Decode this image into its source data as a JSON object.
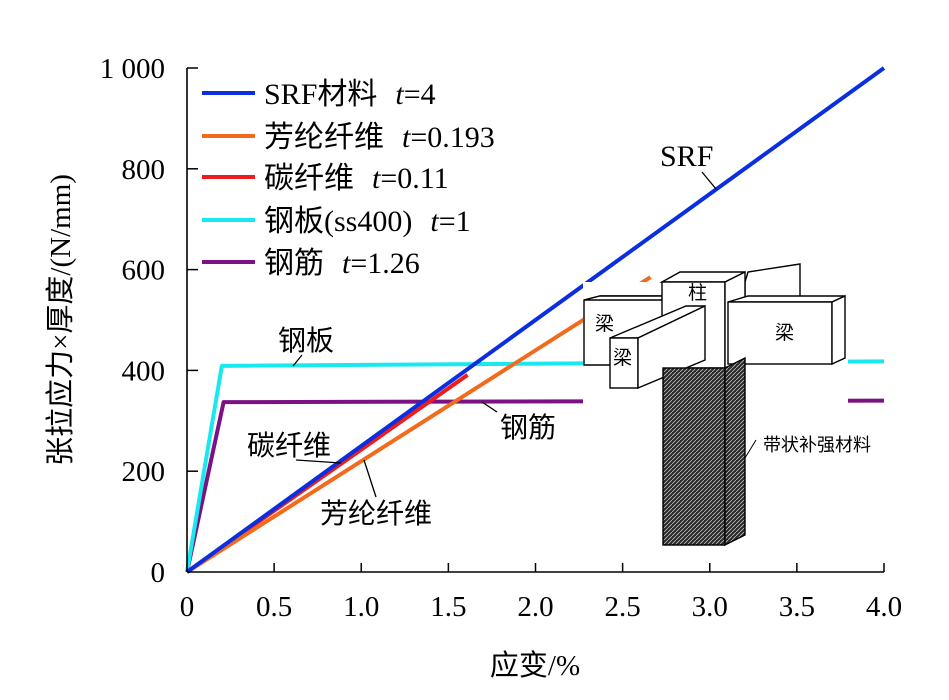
{
  "chart_data": {
    "type": "line",
    "xlabel": "应变/%",
    "ylabel": "张拉应力×厚度/(N/mm)",
    "xlim": [
      0,
      4.0
    ],
    "ylim": [
      0,
      1000
    ],
    "x_ticks": [
      "0",
      "0.5",
      "1.0",
      "1.5",
      "2.0",
      "2.5",
      "3.0",
      "3.5",
      "4.0"
    ],
    "x_tick_values": [
      0,
      0.5,
      1.0,
      1.5,
      2.0,
      2.5,
      3.0,
      3.5,
      4.0
    ],
    "y_ticks": [
      "0",
      "200",
      "400",
      "600",
      "800",
      "1 000"
    ],
    "y_tick_values": [
      0,
      200,
      400,
      600,
      800,
      1000
    ],
    "grid": false,
    "legend_placement": "top-left",
    "series": [
      {
        "name": "SRF材料",
        "t_label": "t",
        "t_value": "=4",
        "color": "#0a2ee0",
        "points": [
          [
            0,
            0
          ],
          [
            4.0,
            1000
          ]
        ]
      },
      {
        "name": "芳纶纤维",
        "t_label": "t",
        "t_value": "=0.193",
        "color": "#f26b1d",
        "points": [
          [
            0,
            0
          ],
          [
            2.66,
            585
          ]
        ]
      },
      {
        "name": "碳纤维",
        "t_label": "t",
        "t_value": "=0.11",
        "color": "#ee1c1c",
        "points": [
          [
            0,
            0
          ],
          [
            1.61,
            391
          ]
        ]
      },
      {
        "name": "钢板(ss400)",
        "t_label": "t",
        "t_value": "=1",
        "color": "#19e8ef",
        "points": [
          [
            0,
            0
          ],
          [
            0.2,
            409
          ],
          [
            4.0,
            418
          ]
        ]
      },
      {
        "name": "钢筋",
        "t_label": "t",
        "t_value": "=1.26",
        "color": "#7b1283",
        "points": [
          [
            0,
            0
          ],
          [
            0.21,
            337
          ],
          [
            4.0,
            340
          ]
        ]
      }
    ],
    "annotations": {
      "srf": "SRF",
      "steel_plate": "钢板",
      "carbon": "碳纤维",
      "aramid": "芳纶纤维",
      "rebar": "钢筋"
    },
    "inset": {
      "column": "柱",
      "beam_left_back": "梁",
      "beam_left_front": "梁",
      "beam_right": "梁",
      "wrap_material": "带状补强材料"
    }
  }
}
